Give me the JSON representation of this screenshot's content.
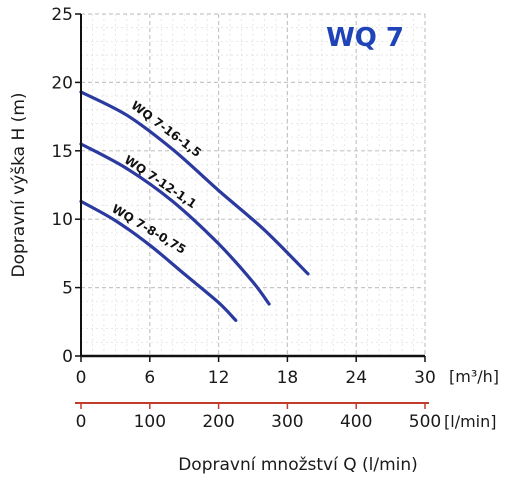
{
  "chart_data": {
    "type": "line",
    "title": "WQ 7",
    "ylabel": "Dopravní výška H (m)",
    "xlabel": "Dopravní množství Q (l/min)",
    "x_unit": "[m³/h]",
    "x2_unit": "[l/min]",
    "xlim": [
      0,
      30
    ],
    "ylim": [
      0,
      25
    ],
    "x2lim": [
      0,
      500
    ],
    "x_ticks": [
      "0",
      "6",
      "12",
      "18",
      "24",
      "30"
    ],
    "x2_ticks": [
      "0",
      "100",
      "200",
      "300",
      "400",
      "500"
    ],
    "y_ticks": [
      "0",
      "5",
      "10",
      "15",
      "20",
      "25"
    ],
    "grid": true,
    "series": [
      {
        "name": "WQ 7-16-1,5",
        "x": [
          0,
          4,
          8,
          12,
          16,
          19.8
        ],
        "y": [
          19.3,
          17.6,
          15.1,
          12.1,
          9.2,
          6.0
        ]
      },
      {
        "name": "WQ 7-12-1,1",
        "x": [
          0,
          4,
          8,
          12,
          15,
          16.4
        ],
        "y": [
          15.5,
          13.7,
          11.3,
          8.2,
          5.4,
          3.8
        ]
      },
      {
        "name": "WQ 7-8-0,75",
        "x": [
          0,
          3,
          6,
          9,
          12,
          13.5
        ],
        "y": [
          11.3,
          9.9,
          8.1,
          6.0,
          3.9,
          2.6
        ]
      }
    ],
    "colors": {
      "curve": "#2b3a9e",
      "title": "#1e44b8",
      "grid": "#c6c6c6",
      "secondary_axis": "#c23b2c"
    }
  }
}
